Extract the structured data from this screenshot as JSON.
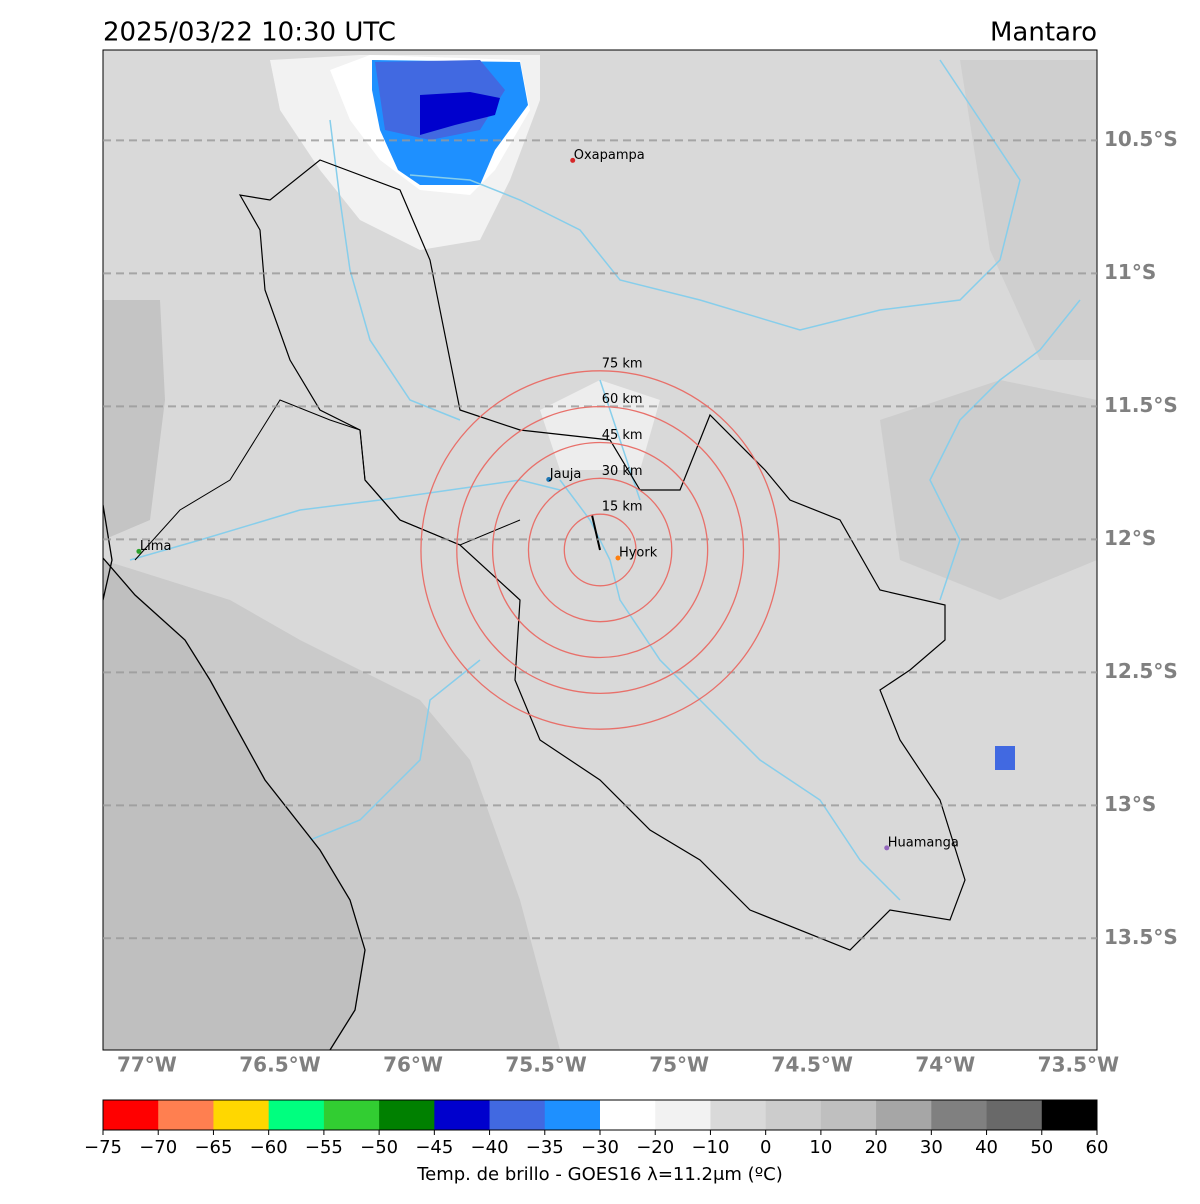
{
  "map": {
    "title": "2025/03/22 10:30 UTC",
    "region": "Mantaro",
    "xlim": [
      -77.165,
      -73.43
    ],
    "ylim": [
      -13.92,
      -10.16
    ],
    "lon_ticks": [
      {
        "value": -77,
        "label": "77°W"
      },
      {
        "value": -76.5,
        "label": "76.5°W"
      },
      {
        "value": -76,
        "label": "76°W"
      },
      {
        "value": -75.5,
        "label": "75.5°W"
      },
      {
        "value": -75,
        "label": "75°W"
      },
      {
        "value": -74.5,
        "label": "74.5°W"
      },
      {
        "value": -74,
        "label": "74°W"
      },
      {
        "value": -73.5,
        "label": "73.5°W"
      }
    ],
    "lat_ticks": [
      {
        "value": -10.5,
        "label": "10.5°S"
      },
      {
        "value": -11,
        "label": "11°S"
      },
      {
        "value": -11.5,
        "label": "11.5°S"
      },
      {
        "value": -12,
        "label": "12°S"
      },
      {
        "value": -12.5,
        "label": "12.5°S"
      },
      {
        "value": -13,
        "label": "13°S"
      },
      {
        "value": -13.5,
        "label": "13.5°S"
      }
    ],
    "grid": true,
    "cities": [
      {
        "name": "Oxapampa",
        "lon": -75.4,
        "lat": -10.575,
        "color": "#d62728"
      },
      {
        "name": "Jauja",
        "lon": -75.49,
        "lat": -11.775,
        "color": "#1f77b4"
      },
      {
        "name": "Lima",
        "lon": -77.03,
        "lat": -12.045,
        "color": "#2ca02c"
      },
      {
        "name": "Hyork",
        "lon": -75.23,
        "lat": -12.07,
        "color": "#ff7f0e"
      },
      {
        "name": "Huamanga",
        "lon": -74.22,
        "lat": -13.16,
        "color": "#9467bd"
      }
    ],
    "rings": {
      "center": [
        -75.297,
        -12.04
      ],
      "color": "#e8706a",
      "radii": [
        {
          "value": 15,
          "label": "15 km"
        },
        {
          "value": 30,
          "label": "30 km"
        },
        {
          "value": 45,
          "label": "45 km"
        },
        {
          "value": 60,
          "label": "60 km"
        },
        {
          "value": 75,
          "label": "75 km"
        }
      ]
    }
  },
  "colorbar": {
    "label": "Temp. de brillo - GOES16 λ=11.2μm (ºC)",
    "ticks": [
      {
        "value": -75,
        "label": "−75"
      },
      {
        "value": -70,
        "label": "−70"
      },
      {
        "value": -65,
        "label": "−65"
      },
      {
        "value": -60,
        "label": "−60"
      },
      {
        "value": -55,
        "label": "−55"
      },
      {
        "value": -50,
        "label": "−50"
      },
      {
        "value": -45,
        "label": "−45"
      },
      {
        "value": -40,
        "label": "−40"
      },
      {
        "value": -35,
        "label": "−35"
      },
      {
        "value": -30,
        "label": "−30"
      },
      {
        "value": -20,
        "label": "−20"
      },
      {
        "value": -10,
        "label": "−10"
      },
      0,
      10,
      20,
      30,
      40,
      50,
      60
    ],
    "colors": [
      "#ff0000",
      "#ff7f50",
      "#ffd700",
      "#00ff7f",
      "#32cd32",
      "#008000",
      "#0000cd",
      "#4169e1",
      "#1e90ff",
      "#ffffff",
      "#f2f2f2",
      "#d9d9d9",
      "#cccccc",
      "#bfbfbf",
      "#a6a6a6",
      "#808080",
      "#696969",
      "#000000"
    ]
  }
}
